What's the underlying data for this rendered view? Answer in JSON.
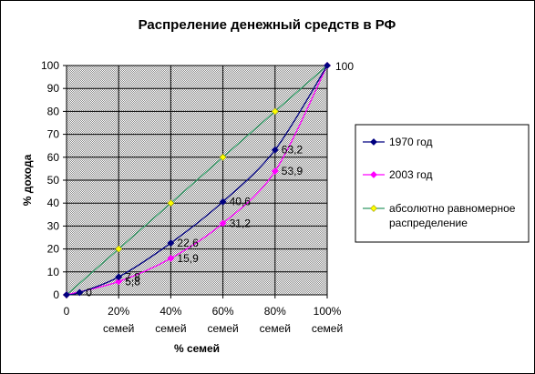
{
  "chart_data": {
    "type": "line",
    "title": "Распреление денежный средств в РФ",
    "xlabel": "% семей",
    "ylabel": "% дохода",
    "x": [
      0,
      20,
      40,
      60,
      80,
      100
    ],
    "x_tick_labels": [
      {
        "line1": "0",
        "line2": ""
      },
      {
        "line1": "20%",
        "line2": "семей"
      },
      {
        "line1": "40%",
        "line2": "семей"
      },
      {
        "line1": "60%",
        "line2": "семей"
      },
      {
        "line1": "80%",
        "line2": "семей"
      },
      {
        "line1": "100%",
        "line2": "семей"
      }
    ],
    "y_ticks": [
      0,
      10,
      20,
      30,
      40,
      50,
      60,
      70,
      80,
      90,
      100
    ],
    "ylim": [
      0,
      100
    ],
    "xlim": [
      0,
      100
    ],
    "grid": true,
    "plot_background": "#c0c0c0",
    "legend_placement": "right",
    "series": [
      {
        "name": "1970 год",
        "color": "#000080",
        "marker": "diamond",
        "points": [
          [
            0,
            0
          ],
          [
            5,
            1
          ],
          [
            20,
            7.8
          ],
          [
            40,
            22.6
          ],
          [
            60,
            40.6
          ],
          [
            80,
            63.2
          ],
          [
            100,
            100
          ]
        ],
        "smooth": true,
        "labels": [
          {
            "x": 5,
            "y": 1,
            "text": "0"
          },
          {
            "x": 20,
            "y": 7.8,
            "text": "7,8"
          },
          {
            "x": 40,
            "y": 22.6,
            "text": "22,6"
          },
          {
            "x": 60,
            "y": 40.6,
            "text": "40,6"
          },
          {
            "x": 80,
            "y": 63.2,
            "text": "63,2"
          },
          {
            "x": 100,
            "y": 100,
            "text": "100"
          }
        ]
      },
      {
        "name": "2003 год",
        "color": "#ff00ff",
        "marker": "diamond",
        "points": [
          [
            0,
            0
          ],
          [
            20,
            5.8
          ],
          [
            40,
            15.9
          ],
          [
            60,
            31.2
          ],
          [
            80,
            53.9
          ],
          [
            100,
            100
          ]
        ],
        "smooth": true,
        "labels": [
          {
            "x": 20,
            "y": 5.8,
            "text": "5,8"
          },
          {
            "x": 40,
            "y": 15.9,
            "text": "15,9"
          },
          {
            "x": 60,
            "y": 31.2,
            "text": "31,2"
          },
          {
            "x": 80,
            "y": 53.9,
            "text": "53,9"
          }
        ]
      },
      {
        "name": "абсолютно равномерное распределение",
        "name_lines": [
          "абсолютно равномерное",
          "распределение"
        ],
        "color": "#339966",
        "marker_color": "#ffff00",
        "marker": "diamond",
        "points": [
          [
            0,
            0
          ],
          [
            20,
            20
          ],
          [
            40,
            40
          ],
          [
            60,
            60
          ],
          [
            80,
            80
          ],
          [
            100,
            100
          ]
        ],
        "smooth": false,
        "labels": []
      }
    ]
  }
}
